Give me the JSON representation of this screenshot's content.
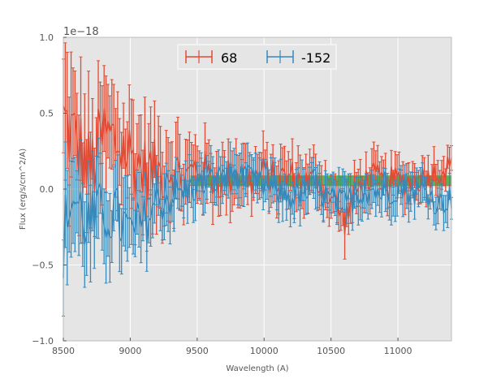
{
  "chart_data": {
    "type": "line",
    "xlabel": "Wavelength (A)",
    "ylabel": "Flux (erg/s/cm^2/A)",
    "y_offset_label": "1e−18",
    "xlim": [
      8500,
      11400
    ],
    "ylim": [
      -1.0,
      1.0
    ],
    "x_ticks": [
      8500,
      9000,
      9500,
      10000,
      10500,
      11000
    ],
    "x_tick_labels": [
      "8500",
      "9000",
      "9500",
      "10000",
      "10500",
      "11000"
    ],
    "y_ticks": [
      -1.0,
      -0.5,
      0.0,
      0.5,
      1.0
    ],
    "y_tick_labels": [
      "−1.0",
      "−0.5",
      "0.0",
      "0.5",
      "1.0"
    ],
    "grid": true,
    "legend_position": "top-center",
    "background_color": "#e5e5e5",
    "band": {
      "x_range": [
        9450,
        11400
      ],
      "y_range": [
        0.02,
        0.09
      ],
      "color": "#2ca02c"
    },
    "series": [
      {
        "name": "68",
        "color": "#e24a33",
        "error_bars": true,
        "anchors": [
          [
            8500,
            0.45
          ],
          [
            8600,
            0.3
          ],
          [
            8700,
            0.1
          ],
          [
            8800,
            0.35
          ],
          [
            8900,
            0.3
          ],
          [
            9000,
            0.22
          ],
          [
            9100,
            0.12
          ],
          [
            9200,
            0.1
          ],
          [
            9300,
            0.15
          ],
          [
            9400,
            0.05
          ],
          [
            9500,
            0.15
          ],
          [
            9600,
            0.08
          ],
          [
            9700,
            0.05
          ],
          [
            9800,
            0.12
          ],
          [
            9900,
            0.06
          ],
          [
            10000,
            0.1
          ],
          [
            10100,
            0.06
          ],
          [
            10200,
            0.08
          ],
          [
            10300,
            0.04
          ],
          [
            10400,
            0.06
          ],
          [
            10500,
            -0.05
          ],
          [
            10600,
            -0.2
          ],
          [
            10700,
            0.0
          ],
          [
            10800,
            0.08
          ],
          [
            10900,
            0.04
          ],
          [
            11000,
            0.06
          ],
          [
            11100,
            0.05
          ],
          [
            11200,
            0.08
          ],
          [
            11300,
            0.12
          ],
          [
            11400,
            0.15
          ]
        ],
        "error_anchors": [
          [
            8500,
            0.35
          ],
          [
            9000,
            0.3
          ],
          [
            9500,
            0.17
          ],
          [
            10000,
            0.14
          ],
          [
            10500,
            0.13
          ],
          [
            11000,
            0.11
          ],
          [
            11400,
            0.1
          ]
        ]
      },
      {
        "name": "-152",
        "color": "#348abd",
        "error_bars": true,
        "anchors": [
          [
            8500,
            -0.35
          ],
          [
            8550,
            -0.05
          ],
          [
            8600,
            -0.1
          ],
          [
            8700,
            -0.25
          ],
          [
            8800,
            -0.15
          ],
          [
            8900,
            -0.18
          ],
          [
            9000,
            -0.3
          ],
          [
            9100,
            -0.22
          ],
          [
            9200,
            -0.08
          ],
          [
            9300,
            -0.05
          ],
          [
            9400,
            -0.02
          ],
          [
            9500,
            0.02
          ],
          [
            9600,
            0.05
          ],
          [
            9700,
            0.08
          ],
          [
            9800,
            0.1
          ],
          [
            9900,
            0.05
          ],
          [
            10000,
            0.02
          ],
          [
            10100,
            -0.02
          ],
          [
            10200,
            -0.05
          ],
          [
            10300,
            -0.03
          ],
          [
            10400,
            0.0
          ],
          [
            10500,
            -0.08
          ],
          [
            10600,
            -0.1
          ],
          [
            10700,
            -0.02
          ],
          [
            10800,
            0.0
          ],
          [
            10900,
            -0.03
          ],
          [
            11000,
            0.02
          ],
          [
            11100,
            -0.02
          ],
          [
            11200,
            0.0
          ],
          [
            11300,
            -0.1
          ],
          [
            11400,
            -0.05
          ]
        ],
        "error_anchors": [
          [
            8500,
            0.3
          ],
          [
            9000,
            0.22
          ],
          [
            9500,
            0.12
          ],
          [
            10000,
            0.11
          ],
          [
            10500,
            0.12
          ],
          [
            11000,
            0.11
          ],
          [
            11400,
            0.1
          ]
        ]
      }
    ]
  }
}
